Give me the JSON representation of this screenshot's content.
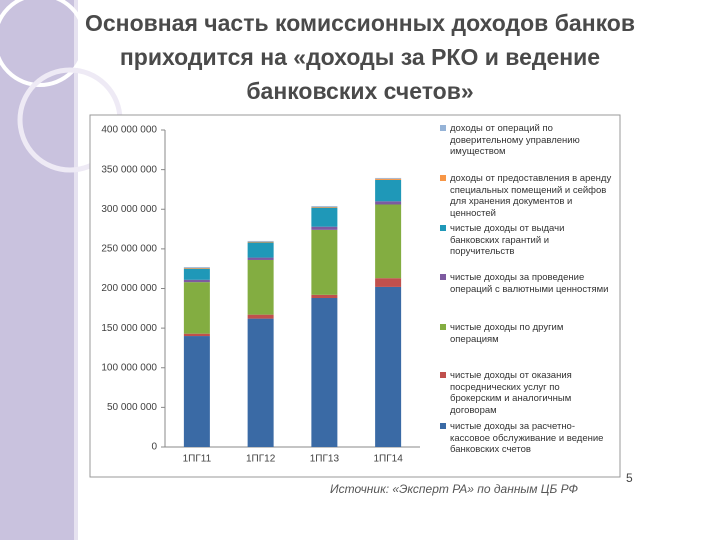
{
  "title": "Основная часть комиссионных доходов банков приходится на «доходы за РКО и ведение банковских счетов»",
  "chart_data": {
    "type": "stacked-bar",
    "categories": [
      "1ПГ11",
      "1ПГ12",
      "1ПГ13",
      "1ПГ14"
    ],
    "ylim": [
      0,
      400000000
    ],
    "yticks": [
      0,
      {
        "value": 50000000,
        "label": "50 000 000"
      },
      {
        "value": 100000000,
        "label": "100 000 000"
      },
      {
        "value": 150000000,
        "label": "150 000 000"
      },
      {
        "value": 200000000,
        "label": "200 000 000"
      },
      {
        "value": 250000000,
        "label": "250 000 000"
      },
      {
        "value": 300000000,
        "label": "300 000 000"
      },
      {
        "value": 350000000,
        "label": "350 000 000"
      },
      {
        "value": 400000000,
        "label": "400 000 000"
      }
    ],
    "grid": false,
    "legend": "right",
    "series": [
      {
        "name": "чистые доходы за расчетно-кассовое обслуживание и ведение банковских счетов",
        "color": "#3a6aa5",
        "values": [
          140000000,
          162000000,
          188000000,
          202000000
        ]
      },
      {
        "name": "чистые доходы от оказания посреднических услуг по брокерским и аналогичным договорам",
        "color": "#c0504d",
        "values": [
          3000000,
          5000000,
          4000000,
          11000000
        ]
      },
      {
        "name": "чистые доходы по другим операциям",
        "color": "#83ad41",
        "values": [
          65000000,
          69000000,
          82000000,
          93000000
        ]
      },
      {
        "name": "чистые доходы за проведение операций с валютными ценностями",
        "color": "#7d5aa0",
        "values": [
          3000000,
          3000000,
          4000000,
          4000000
        ]
      },
      {
        "name": "чистые доходы от выдачи банковских гарантий и поручительств",
        "color": "#1f98b8",
        "values": [
          14000000,
          19000000,
          24000000,
          27000000
        ]
      },
      {
        "name": "доходы от предоставления в аренду специальных помещений и сейфов для хранения документов и ценностей",
        "color": "#f79646",
        "values": [
          1000000,
          1000000,
          1000000,
          1500000
        ]
      },
      {
        "name": "доходы от операций по доверительному управлению имуществом",
        "color": "#95b3d7",
        "values": [
          1000000,
          1000000,
          1000000,
          1000000
        ]
      }
    ]
  },
  "page_number": "5",
  "source": "Источник: «Эксперт РА» по данным ЦБ РФ"
}
